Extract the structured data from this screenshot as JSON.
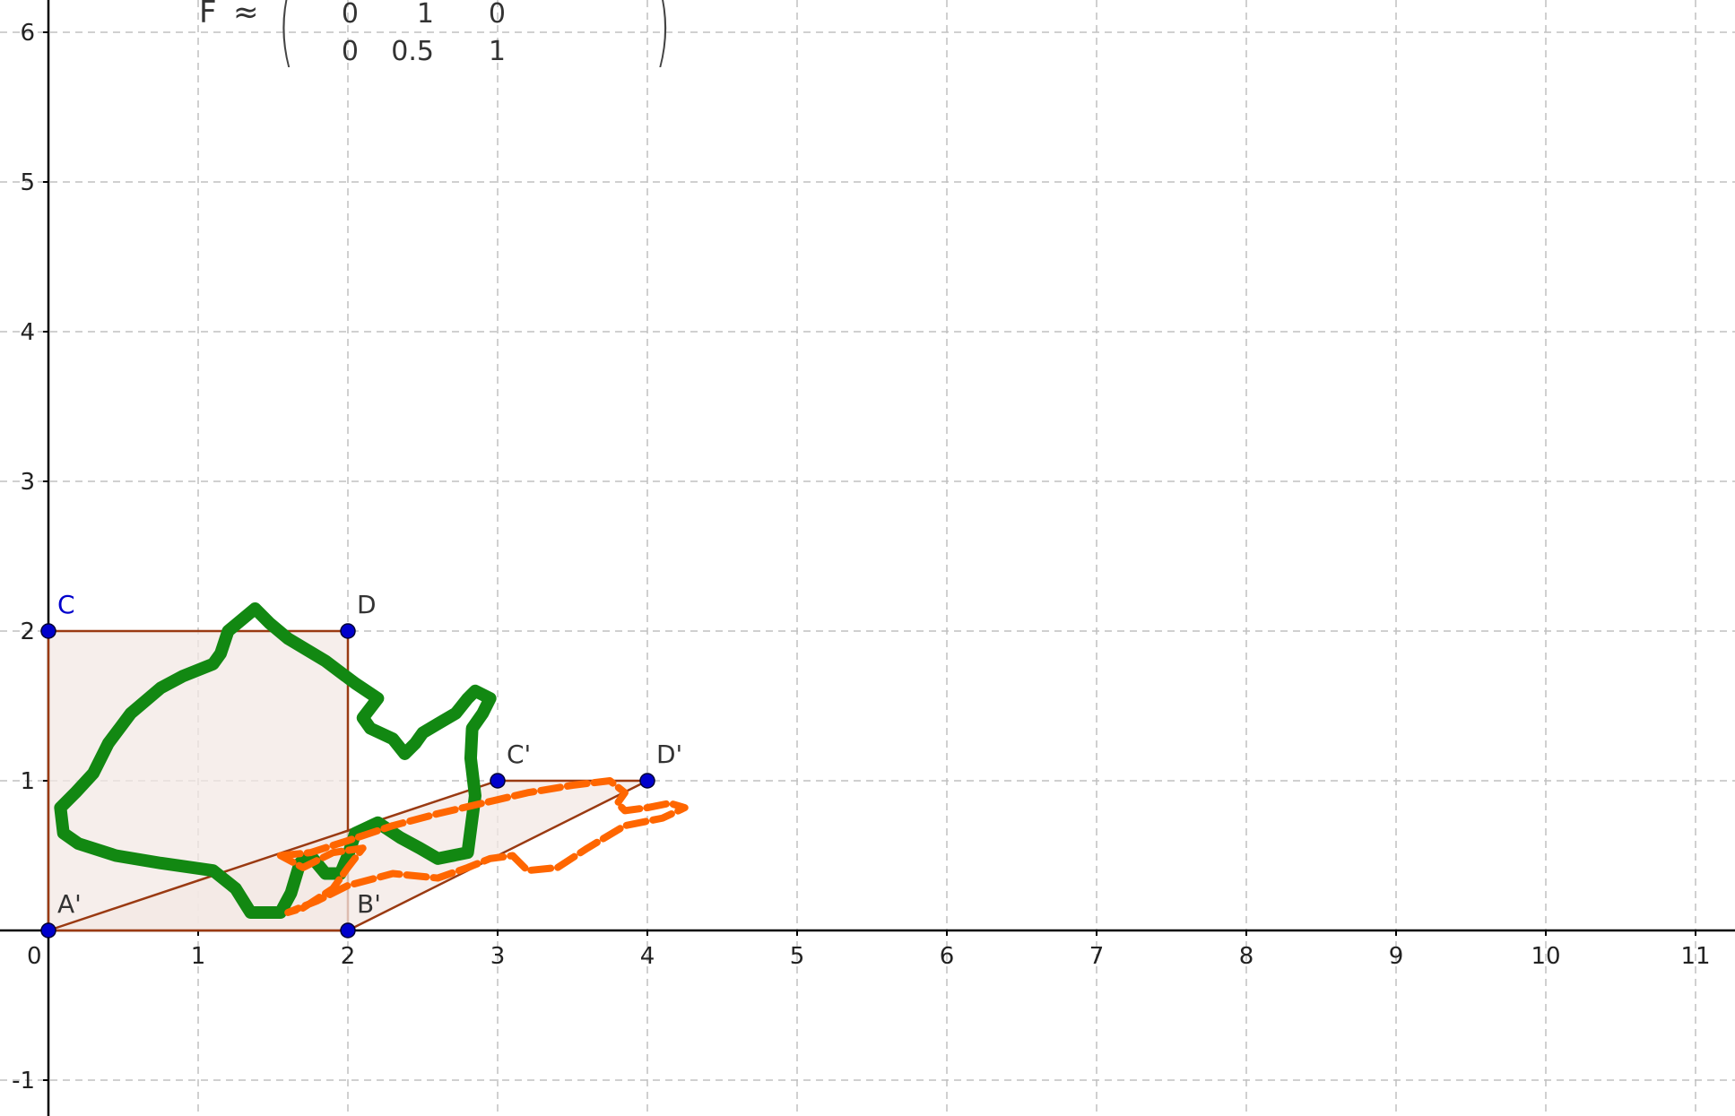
{
  "colors": {
    "grid": "#c0c0c0",
    "axis": "#000000",
    "polygon_fill": "#f3e8e4",
    "polygon_stroke": "#9a3a12",
    "point": "#0000cc",
    "green_stroke": "#128812",
    "orange_stroke": "#ff6600"
  },
  "matrix": {
    "name": "F",
    "approx": "≈",
    "rows": [
      [
        "0",
        "1",
        "0"
      ],
      [
        "0",
        "0.5",
        "1"
      ]
    ]
  },
  "axes": {
    "x_ticks": [
      "0",
      "1",
      "2",
      "3",
      "4",
      "5",
      "6",
      "7",
      "8",
      "9",
      "10",
      "11"
    ],
    "y_ticks": [
      "-1",
      "1",
      "2",
      "3",
      "4",
      "5",
      "6"
    ],
    "grid": true
  },
  "points": [
    {
      "label": "C",
      "x": 0,
      "y": 2,
      "label_color": "#0000cc"
    },
    {
      "label": "D",
      "x": 2,
      "y": 2,
      "label_color": "#333333"
    },
    {
      "label": "A'",
      "x": 0,
      "y": 0,
      "label_color": "#333333"
    },
    {
      "label": "B'",
      "x": 2,
      "y": 0,
      "label_color": "#333333"
    },
    {
      "label": "C'",
      "x": 3,
      "y": 1,
      "label_color": "#333333"
    },
    {
      "label": "D'",
      "x": 4,
      "y": 1,
      "label_color": "#333333"
    }
  ],
  "polygons": [
    {
      "name": "square",
      "vertices": [
        [
          0,
          0
        ],
        [
          2,
          0
        ],
        [
          2,
          2
        ],
        [
          0,
          2
        ]
      ]
    },
    {
      "name": "parallelogram",
      "vertices": [
        [
          0,
          0
        ],
        [
          2,
          0
        ],
        [
          4,
          1
        ],
        [
          3,
          1
        ]
      ]
    }
  ],
  "strokes": {
    "green": [
      [
        1.38,
        2.15
      ],
      [
        1.2,
        2.0
      ],
      [
        1.15,
        1.85
      ],
      [
        1.1,
        1.78
      ],
      [
        0.9,
        1.7
      ],
      [
        0.75,
        1.62
      ],
      [
        0.55,
        1.45
      ],
      [
        0.4,
        1.25
      ],
      [
        0.3,
        1.05
      ],
      [
        0.18,
        0.92
      ],
      [
        0.08,
        0.82
      ],
      [
        0.1,
        0.65
      ],
      [
        0.2,
        0.58
      ],
      [
        0.45,
        0.5
      ],
      [
        0.75,
        0.45
      ],
      [
        1.1,
        0.4
      ],
      [
        1.25,
        0.28
      ],
      [
        1.35,
        0.12
      ],
      [
        1.55,
        0.12
      ],
      [
        1.62,
        0.25
      ],
      [
        1.68,
        0.45
      ],
      [
        1.75,
        0.5
      ],
      [
        1.85,
        0.38
      ],
      [
        1.95,
        0.38
      ],
      [
        2.0,
        0.5
      ],
      [
        2.05,
        0.65
      ],
      [
        2.2,
        0.72
      ],
      [
        2.35,
        0.62
      ],
      [
        2.48,
        0.55
      ],
      [
        2.6,
        0.48
      ],
      [
        2.8,
        0.52
      ],
      [
        2.85,
        0.9
      ],
      [
        2.82,
        1.15
      ],
      [
        2.83,
        1.35
      ],
      [
        2.9,
        1.45
      ],
      [
        2.95,
        1.55
      ],
      [
        2.85,
        1.6
      ],
      [
        2.8,
        1.55
      ],
      [
        2.72,
        1.45
      ],
      [
        2.6,
        1.38
      ],
      [
        2.5,
        1.32
      ],
      [
        2.45,
        1.25
      ],
      [
        2.38,
        1.18
      ],
      [
        2.3,
        1.28
      ],
      [
        2.15,
        1.35
      ],
      [
        2.1,
        1.42
      ],
      [
        2.2,
        1.55
      ],
      [
        2.05,
        1.65
      ],
      [
        1.85,
        1.8
      ],
      [
        1.6,
        1.95
      ],
      [
        1.48,
        2.05
      ],
      [
        1.38,
        2.15
      ]
    ],
    "orange": [
      [
        1.55,
        0.5
      ],
      [
        1.75,
        0.52
      ],
      [
        2.0,
        0.6
      ],
      [
        2.3,
        0.7
      ],
      [
        2.6,
        0.78
      ],
      [
        2.9,
        0.85
      ],
      [
        3.2,
        0.92
      ],
      [
        3.5,
        0.97
      ],
      [
        3.75,
        1.0
      ],
      [
        3.85,
        0.92
      ],
      [
        3.8,
        0.85
      ],
      [
        3.85,
        0.8
      ],
      [
        4.0,
        0.82
      ],
      [
        4.15,
        0.85
      ],
      [
        4.25,
        0.82
      ],
      [
        4.1,
        0.75
      ],
      [
        3.85,
        0.7
      ],
      [
        3.6,
        0.55
      ],
      [
        3.4,
        0.42
      ],
      [
        3.2,
        0.4
      ],
      [
        3.1,
        0.5
      ],
      [
        2.95,
        0.48
      ],
      [
        2.8,
        0.42
      ],
      [
        2.6,
        0.35
      ],
      [
        2.3,
        0.38
      ],
      [
        2.0,
        0.3
      ],
      [
        1.8,
        0.2
      ],
      [
        1.6,
        0.12
      ],
      [
        1.7,
        0.15
      ],
      [
        1.9,
        0.28
      ],
      [
        2.0,
        0.42
      ],
      [
        2.1,
        0.55
      ],
      [
        1.9,
        0.52
      ],
      [
        1.7,
        0.42
      ],
      [
        1.55,
        0.5
      ]
    ]
  }
}
